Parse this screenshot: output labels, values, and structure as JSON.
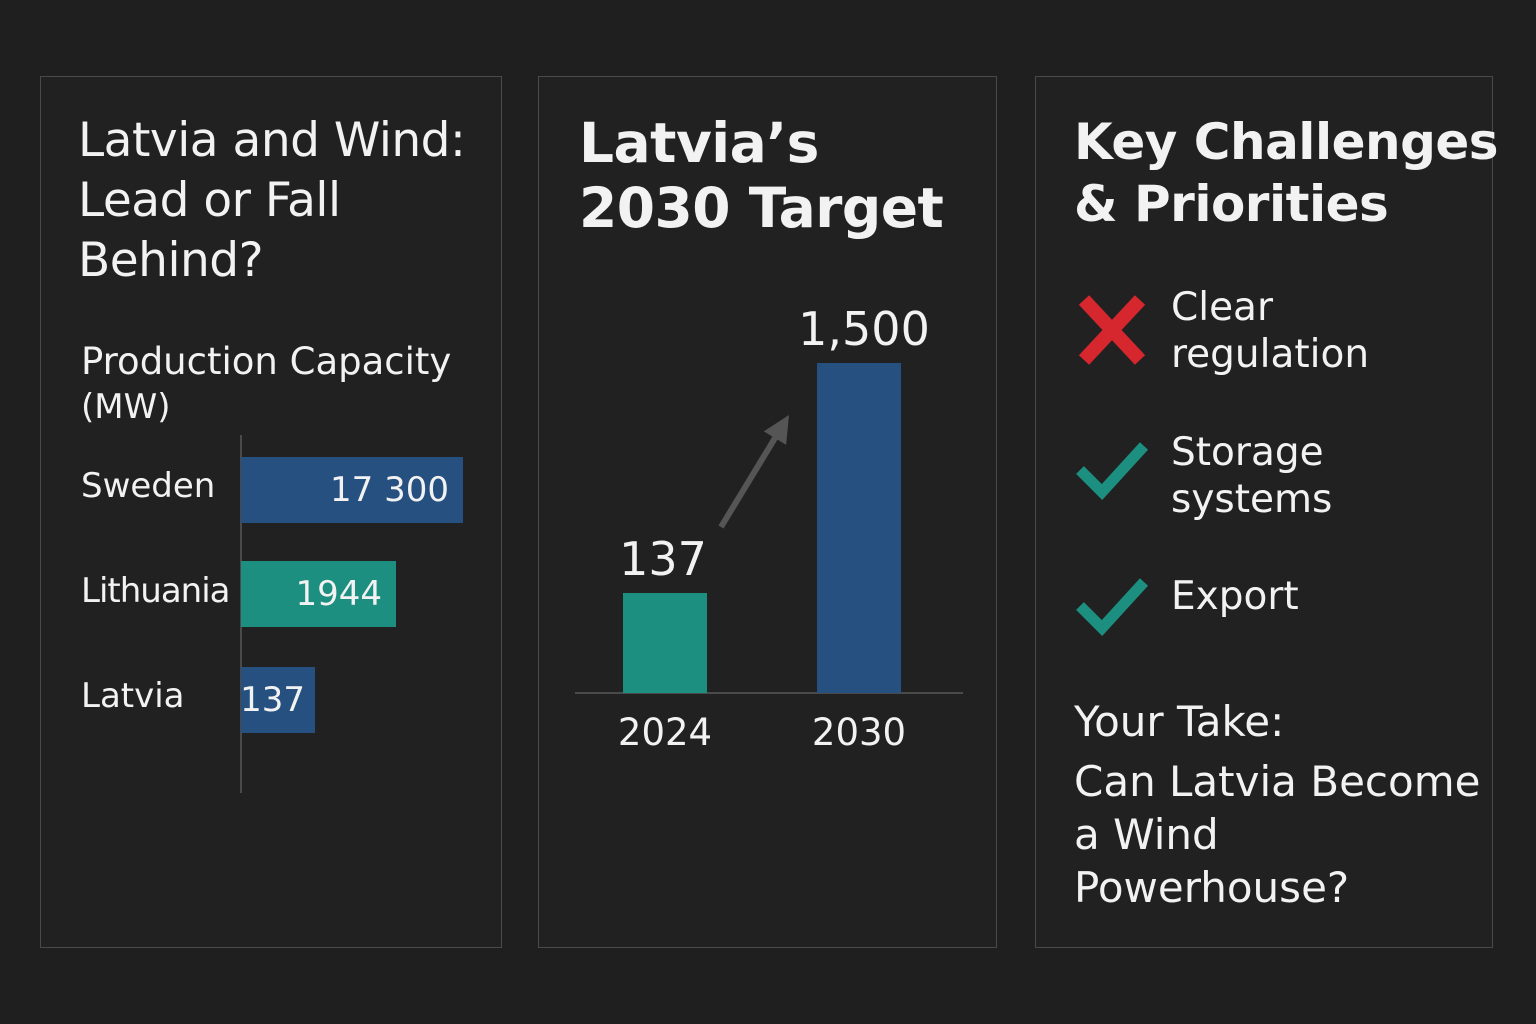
{
  "panels": {
    "left": {
      "title_lines": [
        "Latvia and Wind:",
        "Lead or Fall",
        "Behind?"
      ]
    },
    "middle": {
      "title_lines": [
        "Latvia’s",
        "2030 Target"
      ]
    },
    "right": {
      "title_lines": [
        "Key Challenges",
        "& Priorities"
      ],
      "items": [
        {
          "label_lines": [
            "Clear",
            "regulation"
          ],
          "status": "cross",
          "icon": "cross-icon",
          "color": "#d6262e"
        },
        {
          "label_lines": [
            "Storage",
            "systems"
          ],
          "status": "check",
          "icon": "check-icon",
          "color": "#1d8f80"
        },
        {
          "label_lines": [
            "Export"
          ],
          "status": "check",
          "icon": "check-icon",
          "color": "#1d8f80"
        }
      ],
      "take_heading": "Your Take:",
      "take_question_lines": [
        "Can Latvia Become",
        "a Wind",
        "Powerhouse?"
      ]
    }
  },
  "chart_data": [
    {
      "type": "bar",
      "orientation": "horizontal",
      "title": "Production Capacity",
      "unit": "(MW)",
      "categories": [
        "Sweden",
        "Lithuania",
        "Latvia"
      ],
      "values": [
        17300,
        1944,
        137
      ],
      "value_labels": [
        "17 300",
        "1944",
        "137"
      ],
      "colors": [
        "#25507f",
        "#1d8f80",
        "#25507f"
      ]
    },
    {
      "type": "bar",
      "categories": [
        "2024",
        "2030"
      ],
      "values": [
        137,
        1500
      ],
      "value_labels": [
        "137",
        "1,500"
      ],
      "colors": [
        "#1d8f80",
        "#25507f"
      ],
      "annotation": "arrow-up-icon"
    }
  ]
}
